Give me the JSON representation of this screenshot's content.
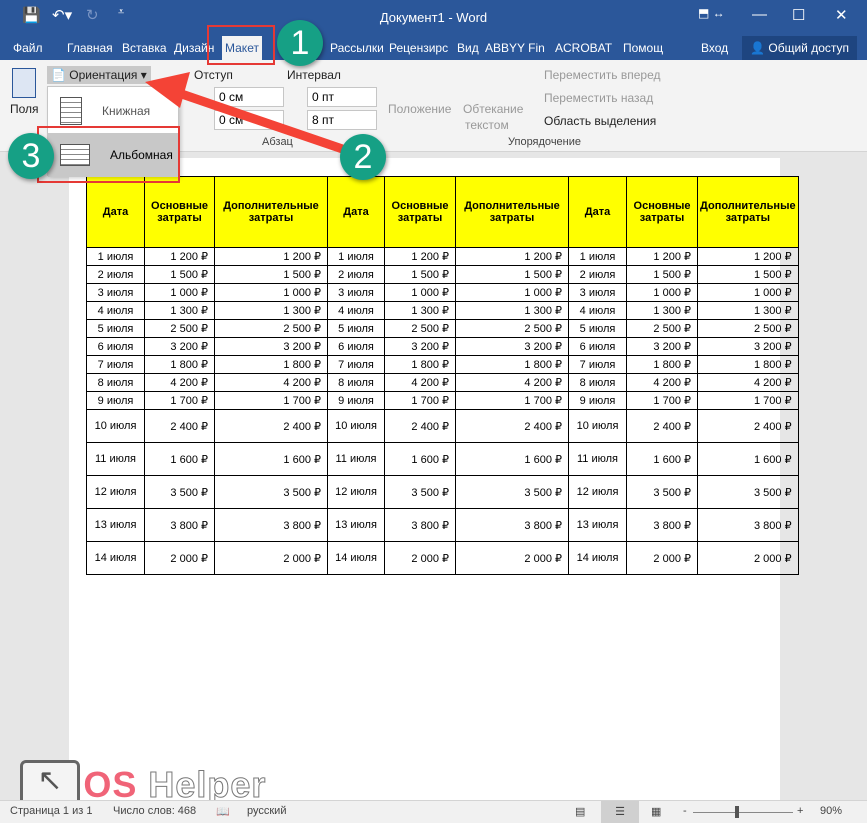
{
  "window": {
    "title": "Документ1 - Word"
  },
  "tabs": [
    "Файл",
    "Главная",
    "Вставка",
    "Дизайн",
    "Макет",
    "Рассылки",
    "Рецензирс",
    "Вид",
    "ABBYY Fin",
    "ACROBAT",
    "Помощ",
    "Вход"
  ],
  "share": "Общий доступ",
  "ribbon": {
    "fields": "Поля",
    "orientation": "Ориентация",
    "indent": "Отступ",
    "spacing": "Интервал",
    "indent_left": "0 см",
    "indent_right": "0 см",
    "spacing_before": "0 пт",
    "spacing_after": "8 пт",
    "paragraph_group": "Абзац",
    "position": "Положение",
    "wrap1": "Обтекание",
    "wrap2": "текстом",
    "bring_forward": "Переместить вперед",
    "send_backward": "Переместить назад",
    "selection_pane": "Область выделения",
    "arrange_group": "Упорядочение"
  },
  "menu": {
    "portrait": "Книжная",
    "landscape": "Альбомная"
  },
  "annotations": [
    "1",
    "2",
    "3"
  ],
  "table": {
    "headers": [
      "Дата",
      "Основные затраты",
      "Дополнительные затраты",
      "Дата",
      "Основные затраты",
      "Дополнительные затраты",
      "Дата",
      "Основные затраты",
      "Дополнительные затраты"
    ],
    "rows": [
      [
        "1 июля",
        "1 200 ₽"
      ],
      [
        "2 июля",
        "1 500 ₽"
      ],
      [
        "3 июля",
        "1 000 ₽"
      ],
      [
        "4 июля",
        "1 300 ₽"
      ],
      [
        "5 июля",
        "2 500 ₽"
      ],
      [
        "6 июля",
        "3 200 ₽"
      ],
      [
        "7 июля",
        "1 800 ₽"
      ],
      [
        "8 июля",
        "4 200 ₽"
      ],
      [
        "9 июля",
        "1 700 ₽"
      ],
      [
        "10 июля",
        "2 400 ₽"
      ],
      [
        "11 июля",
        "1 600 ₽"
      ],
      [
        "12 июля",
        "3 500 ₽"
      ],
      [
        "13 июля",
        "3 800 ₽"
      ],
      [
        "14 июля",
        "2 000 ₽"
      ]
    ]
  },
  "status": {
    "page": "Страница 1 из 1",
    "words": "Число слов: 468",
    "lang": "русский",
    "zoom": "90%"
  },
  "logo": "OS Helper"
}
